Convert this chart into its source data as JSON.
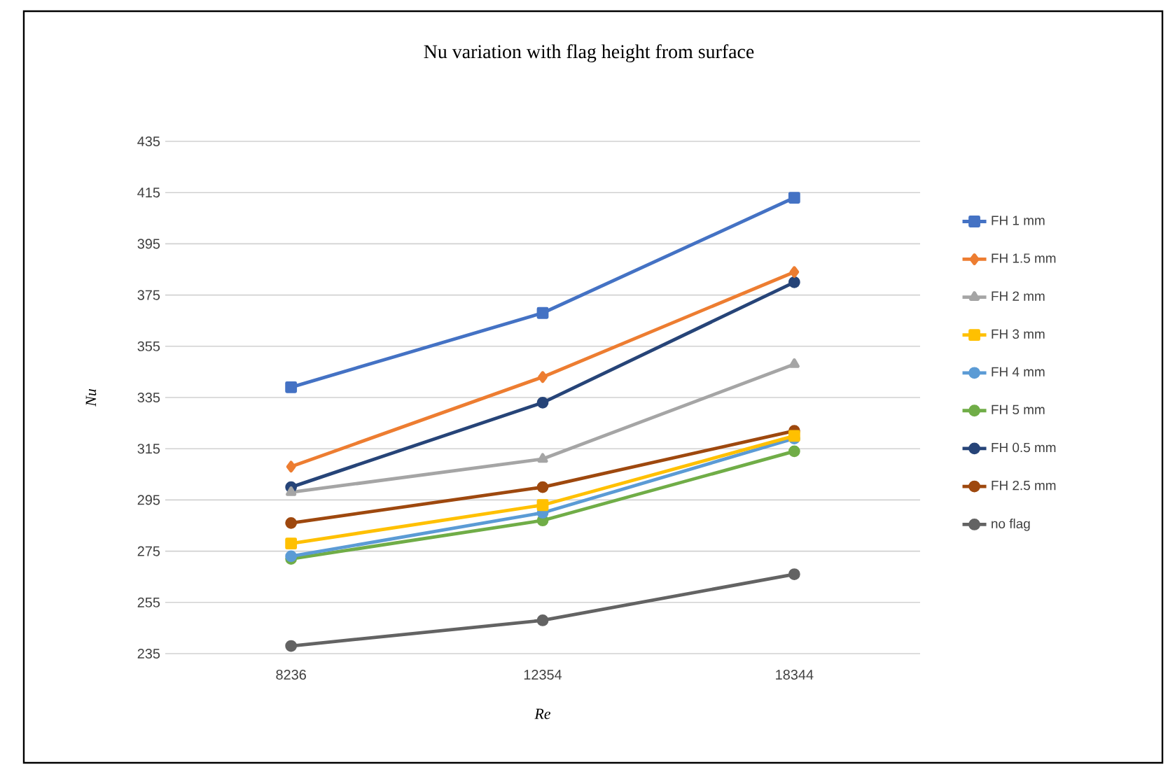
{
  "chart_data": {
    "type": "line",
    "title": "Nu variation with flag height from surface",
    "xlabel": "Re",
    "ylabel": "Nu",
    "categories": [
      "8236",
      "12354",
      "18344"
    ],
    "series": [
      {
        "name": "FH 1 mm",
        "color": "#4472c4",
        "marker": "square",
        "values": [
          339,
          368,
          413
        ]
      },
      {
        "name": "FH 1.5 mm",
        "color": "#ed7d31",
        "marker": "diamond",
        "values": [
          308,
          343,
          384
        ]
      },
      {
        "name": "FH 2 mm",
        "color": "#a5a5a5",
        "marker": "triangle",
        "values": [
          298,
          311,
          348
        ]
      },
      {
        "name": "FH 3 mm",
        "color": "#ffc000",
        "marker": "square",
        "values": [
          278,
          293,
          320
        ]
      },
      {
        "name": "FH 4 mm",
        "color": "#5b9bd5",
        "marker": "circle",
        "values": [
          273,
          290,
          319
        ]
      },
      {
        "name": "FH 5 mm",
        "color": "#70ad47",
        "marker": "circle",
        "values": [
          272,
          287,
          314
        ]
      },
      {
        "name": "FH 0.5 mm",
        "color": "#264478",
        "marker": "circle",
        "values": [
          300,
          333,
          380
        ]
      },
      {
        "name": "FH 2.5 mm",
        "color": "#9e480e",
        "marker": "circle",
        "values": [
          286,
          300,
          322
        ]
      },
      {
        "name": "no flag",
        "color": "#636363",
        "marker": "circle",
        "values": [
          238,
          248,
          266
        ]
      }
    ],
    "ylim": [
      235,
      435
    ],
    "yticks": [
      235,
      255,
      275,
      295,
      315,
      335,
      355,
      375,
      395,
      415,
      435
    ],
    "grid": "y",
    "legend": "right",
    "line_style": "solid"
  }
}
